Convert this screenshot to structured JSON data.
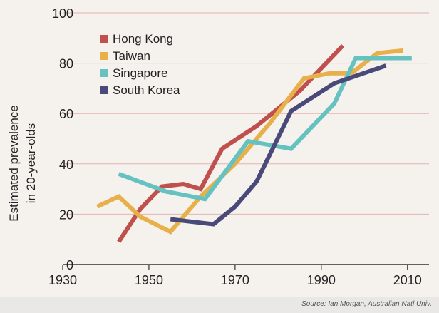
{
  "chart_data": {
    "type": "line",
    "ylabel_line1": "Estimated prevalence",
    "ylabel_line2": "in 20-year-olds",
    "xlim": [
      1930,
      2015
    ],
    "ylim": [
      0,
      100
    ],
    "xticks": [
      1930,
      1950,
      1970,
      1990,
      2010
    ],
    "yticks": [
      0,
      20,
      40,
      60,
      80,
      100
    ],
    "grid": "horizontal",
    "legend_position": "top-left",
    "series": [
      {
        "name": "Hong Kong",
        "color": "#c0504d",
        "points": [
          [
            1943,
            9
          ],
          [
            1948,
            22
          ],
          [
            1953,
            31
          ],
          [
            1958,
            32
          ],
          [
            1962,
            30
          ],
          [
            1967,
            46
          ],
          [
            1975,
            55
          ],
          [
            1985,
            69
          ],
          [
            1995,
            87
          ]
        ]
      },
      {
        "name": "Taiwan",
        "color": "#e8b04a",
        "points": [
          [
            1938,
            23
          ],
          [
            1943,
            27
          ],
          [
            1948,
            19
          ],
          [
            1955,
            13
          ],
          [
            1962,
            27
          ],
          [
            1970,
            40
          ],
          [
            1978,
            56
          ],
          [
            1986,
            74
          ],
          [
            1992,
            76
          ],
          [
            1997,
            76
          ],
          [
            2003,
            84
          ],
          [
            2009,
            85
          ]
        ]
      },
      {
        "name": "Singapore",
        "color": "#66c2c0",
        "points": [
          [
            1943,
            36
          ],
          [
            1954,
            29
          ],
          [
            1963,
            26
          ],
          [
            1973,
            49
          ],
          [
            1983,
            46
          ],
          [
            1993,
            64
          ],
          [
            1998,
            82
          ],
          [
            2011,
            82
          ]
        ]
      },
      {
        "name": "South Korea",
        "color": "#4a4a7a",
        "points": [
          [
            1955,
            18
          ],
          [
            1965,
            16
          ],
          [
            1970,
            23
          ],
          [
            1975,
            33
          ],
          [
            1983,
            61
          ],
          [
            1993,
            72
          ],
          [
            2005,
            79
          ]
        ]
      }
    ]
  },
  "source": "Source: Ian Morgan, Australian Natl Univ."
}
